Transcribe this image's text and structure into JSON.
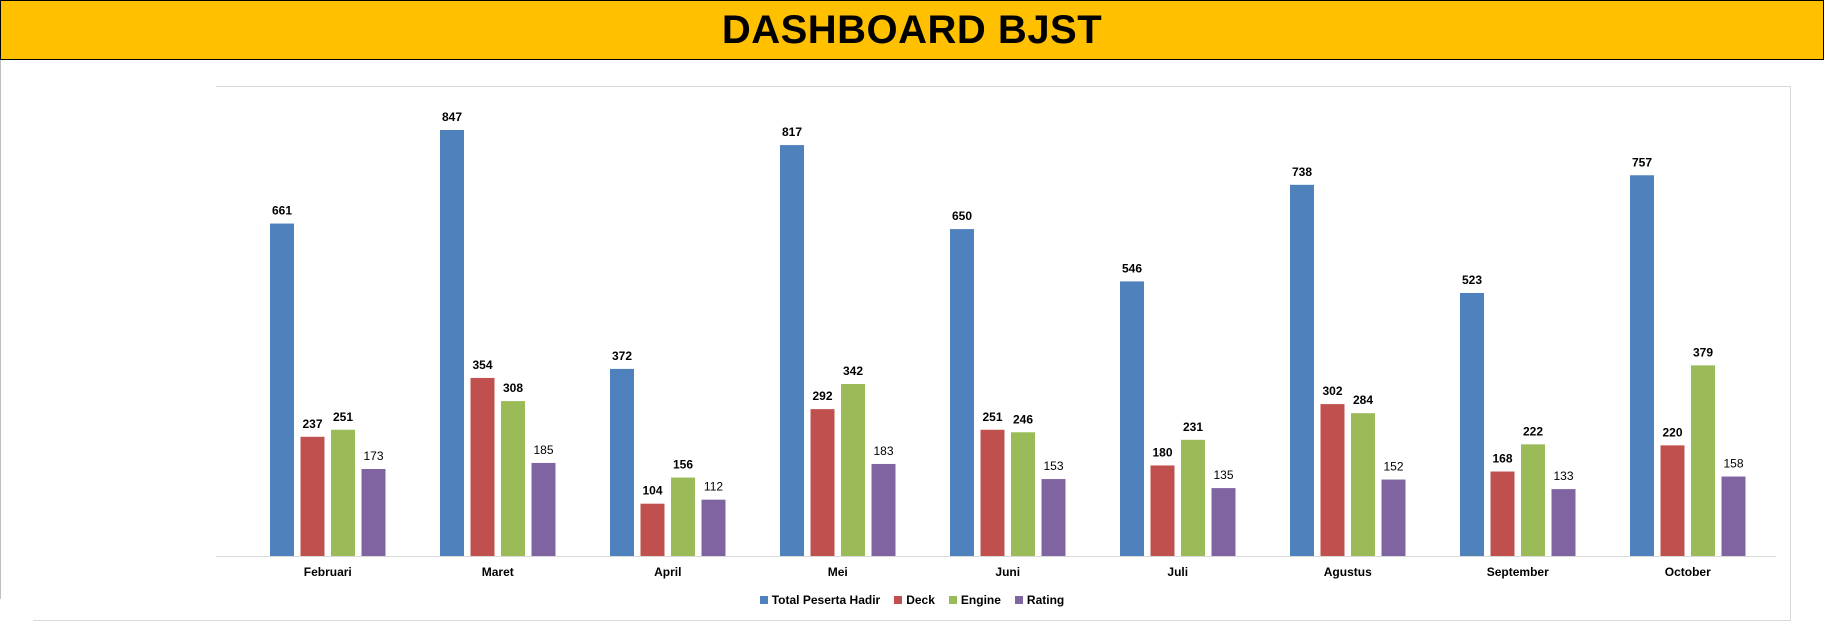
{
  "header": {
    "title": "DASHBOARD BJST",
    "background": "#ffc000"
  },
  "chart_data": {
    "type": "bar",
    "title": "",
    "xlabel": "",
    "ylabel": "",
    "ylim": [
      0,
      900
    ],
    "grid": false,
    "legend_position": "bottom",
    "categories": [
      "Februari",
      "Maret",
      "April",
      "Mei",
      "Juni",
      "Juli",
      "Agustus",
      "September",
      "October"
    ],
    "series": [
      {
        "name": "Total Peserta Hadir",
        "color": "#4f81bd",
        "values": [
          661,
          847,
          372,
          817,
          650,
          546,
          738,
          523,
          757
        ]
      },
      {
        "name": "Deck",
        "color": "#c0504d",
        "values": [
          237,
          354,
          104,
          292,
          251,
          180,
          302,
          168,
          220
        ]
      },
      {
        "name": "Engine",
        "color": "#9bbb59",
        "values": [
          251,
          308,
          156,
          342,
          246,
          231,
          284,
          222,
          379
        ]
      },
      {
        "name": "Rating",
        "color": "#8064a2",
        "values": [
          173,
          185,
          112,
          183,
          153,
          135,
          152,
          133,
          158
        ]
      }
    ]
  }
}
